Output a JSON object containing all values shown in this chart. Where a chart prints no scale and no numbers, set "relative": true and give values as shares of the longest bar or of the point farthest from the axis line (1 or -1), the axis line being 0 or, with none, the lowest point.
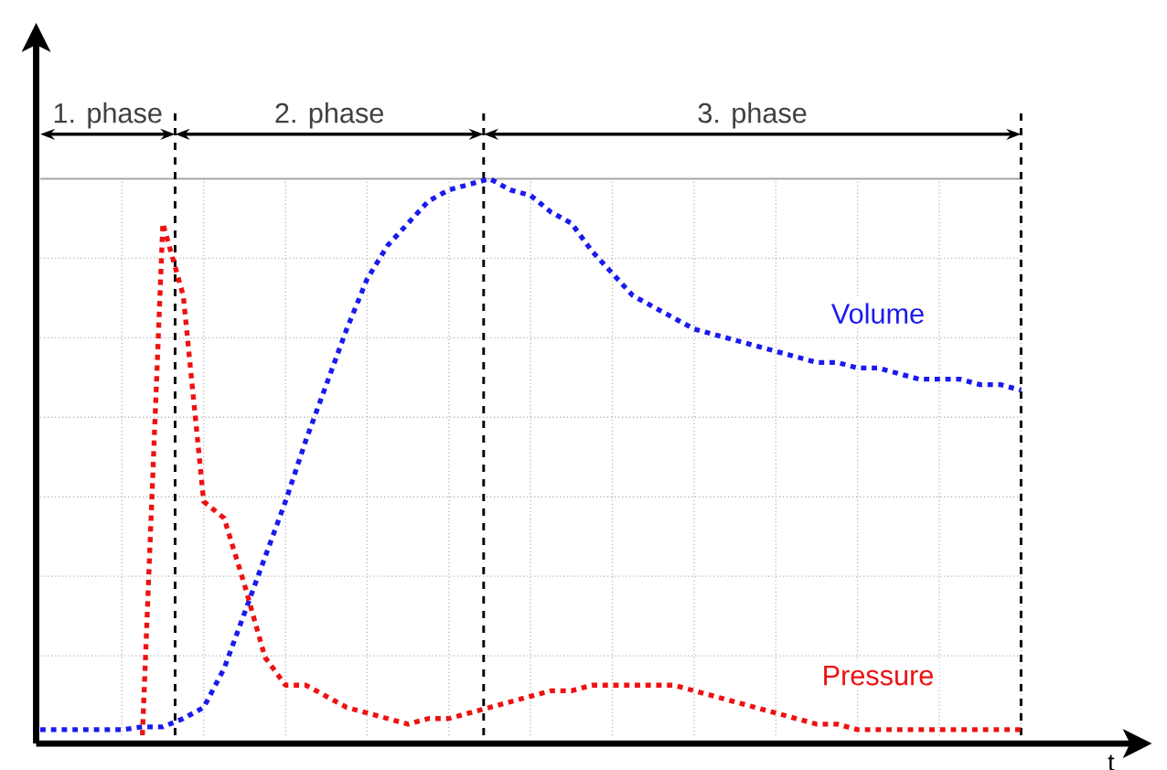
{
  "chart_data": {
    "type": "line",
    "relative": true,
    "xlabel": "t",
    "grid": true,
    "line_style": "dotted",
    "marker": "none",
    "categories": [
      null,
      null,
      null,
      null,
      null,
      null,
      null,
      null,
      null,
      null,
      null,
      null,
      null,
      null,
      null,
      null,
      null,
      null,
      null,
      null,
      null,
      null,
      null,
      null,
      null,
      null,
      null,
      null,
      null,
      null,
      null,
      null,
      null,
      null,
      null,
      null,
      null,
      null,
      null,
      null,
      null,
      null,
      null,
      null,
      null,
      null,
      null,
      null,
      null
    ],
    "series": [
      {
        "name": "Volume",
        "color": "#1a1aee",
        "values": [
          0.01,
          0.01,
          0.01,
          0.01,
          0.01,
          0.015,
          0.015,
          0.03,
          0.05,
          0.12,
          0.22,
          0.32,
          0.42,
          0.53,
          0.63,
          0.73,
          0.82,
          0.88,
          0.92,
          0.96,
          0.98,
          0.99,
          1.0,
          0.98,
          0.97,
          0.94,
          0.92,
          0.87,
          0.83,
          0.79,
          0.77,
          0.75,
          0.73,
          0.72,
          0.71,
          0.7,
          0.69,
          0.68,
          0.67,
          0.67,
          0.66,
          0.66,
          0.65,
          0.64,
          0.64,
          0.64,
          0.63,
          0.63,
          0.62
        ]
      },
      {
        "name": "Pressure",
        "color": "#ee1111",
        "values": [
          null,
          null,
          null,
          null,
          null,
          0.0,
          0.92,
          0.79,
          0.42,
          0.39,
          0.27,
          0.14,
          0.09,
          0.09,
          0.07,
          0.05,
          0.04,
          0.03,
          0.02,
          0.03,
          0.03,
          0.04,
          0.05,
          0.06,
          0.07,
          0.08,
          0.08,
          0.09,
          0.09,
          0.09,
          0.09,
          0.09,
          0.08,
          0.07,
          0.06,
          0.05,
          0.04,
          0.03,
          0.02,
          0.02,
          0.01,
          0.01,
          0.01,
          0.01,
          0.01,
          0.01,
          0.01,
          0.01,
          0.01
        ]
      }
    ],
    "annotations": [
      "1. phase",
      "2. phase",
      "3. phase"
    ]
  }
}
